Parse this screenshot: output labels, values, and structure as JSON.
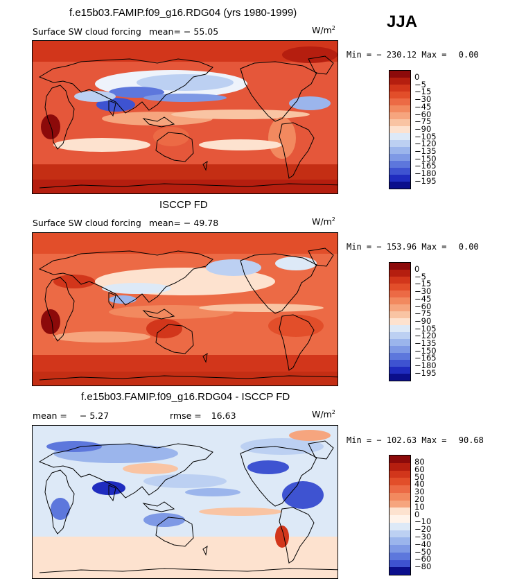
{
  "season": "JJA",
  "panels": [
    {
      "title": "f.e15b03.FAMIP.f09_g16.RDG04 (yrs 1980-1999)",
      "subtitle": "Surface SW cloud forcing",
      "mean_label": "mean=",
      "mean_value": "-55.05",
      "units_base": "W/m",
      "units_exp": "2",
      "min_label": "Min =",
      "min_value": "-230.12",
      "max_label": "Max =",
      "max_value": "0.00",
      "legend_labels": [
        "0",
        "-5",
        "-15",
        "-30",
        "-45",
        "-60",
        "-75",
        "-90",
        "-105",
        "-120",
        "-135",
        "-150",
        "-165",
        "-180",
        "-195"
      ],
      "legend_colors": [
        "#8c0a0a",
        "#b51e0f",
        "#d2361b",
        "#e24e2a",
        "#ec6a45",
        "#f2895f",
        "#f6a57e",
        "#f9c4a3",
        "#fde2cf",
        "#dde9f7",
        "#bcd0f2",
        "#9bb5ec",
        "#7e99e5",
        "#5d77dc",
        "#3e53d1",
        "#1f2cbf",
        "#0b0f8c"
      ]
    },
    {
      "title": "ISCCP FD",
      "subtitle": "Surface SW cloud forcing",
      "mean_label": "mean=",
      "mean_value": "-49.78",
      "units_base": "W/m",
      "units_exp": "2",
      "min_label": "Min =",
      "min_value": "-153.96",
      "max_label": "Max =",
      "max_value": "0.00",
      "legend_labels": [
        "0",
        "-5",
        "-15",
        "-30",
        "-45",
        "-60",
        "-75",
        "-90",
        "-105",
        "-120",
        "-135",
        "-150",
        "-165",
        "-180",
        "-195"
      ],
      "legend_colors": [
        "#8c0a0a",
        "#b51e0f",
        "#d2361b",
        "#e24e2a",
        "#ec6a45",
        "#f2895f",
        "#f6a57e",
        "#f9c4a3",
        "#fde2cf",
        "#dde9f7",
        "#bcd0f2",
        "#9bb5ec",
        "#7e99e5",
        "#5d77dc",
        "#3e53d1",
        "#1f2cbf",
        "#0b0f8c"
      ]
    },
    {
      "title": "f.e15b03.FAMIP.f09_g16.RDG04 - ISCCP FD",
      "mean_label": "mean =",
      "mean_value": "-5.27",
      "rmse_label": "rmse =",
      "rmse_value": "16.63",
      "units_base": "W/m",
      "units_exp": "2",
      "min_label": "Min =",
      "min_value": "-102.63",
      "max_label": "Max =",
      "max_value": "90.68",
      "legend_labels": [
        "80",
        "60",
        "50",
        "40",
        "30",
        "20",
        "10",
        "0",
        "-10",
        "-20",
        "-30",
        "-40",
        "-50",
        "-60",
        "-80"
      ],
      "legend_colors": [
        "#8c0a0a",
        "#b51e0f",
        "#d2361b",
        "#e24e2a",
        "#ec6a45",
        "#f2895f",
        "#f6a57e",
        "#fde2cf",
        "#fff3ea",
        "#dde9f7",
        "#bcd0f2",
        "#9bb5ec",
        "#7e99e5",
        "#5d77dc",
        "#3e53d1",
        "#0b0f8c"
      ]
    }
  ]
}
